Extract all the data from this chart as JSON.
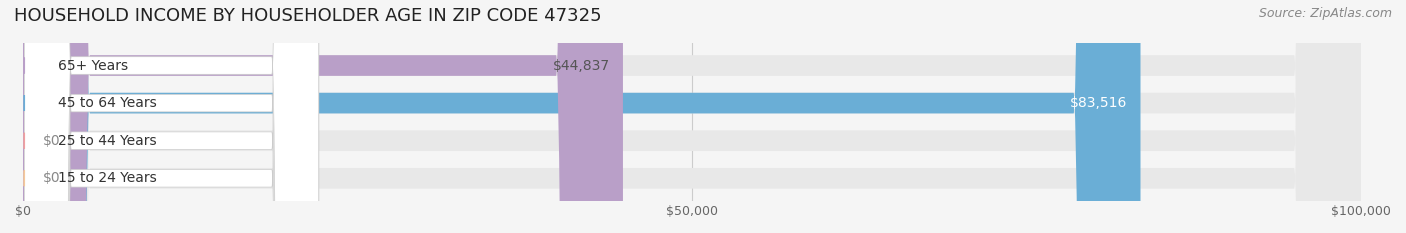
{
  "title": "HOUSEHOLD INCOME BY HOUSEHOLDER AGE IN ZIP CODE 47325",
  "source": "Source: ZipAtlas.com",
  "categories": [
    "15 to 24 Years",
    "25 to 44 Years",
    "45 to 64 Years",
    "65+ Years"
  ],
  "values": [
    0,
    0,
    83516,
    44837
  ],
  "bar_colors": [
    "#f5c99a",
    "#f0a0a0",
    "#6aaed6",
    "#b99fc8"
  ],
  "label_colors": [
    "#888888",
    "#888888",
    "#ffffff",
    "#555555"
  ],
  "bar_labels": [
    "$0",
    "$0",
    "$83,516",
    "$44,837"
  ],
  "xlim": [
    0,
    100000
  ],
  "xticks": [
    0,
    50000,
    100000
  ],
  "xtick_labels": [
    "$0",
    "$50,000",
    "$100,000"
  ],
  "bg_color": "#f5f5f5",
  "bar_bg_color": "#e8e8e8",
  "title_fontsize": 13,
  "source_fontsize": 9,
  "label_fontsize": 10,
  "tick_fontsize": 9,
  "category_fontsize": 10,
  "bar_height": 0.55,
  "fig_width": 14.06,
  "fig_height": 2.33
}
